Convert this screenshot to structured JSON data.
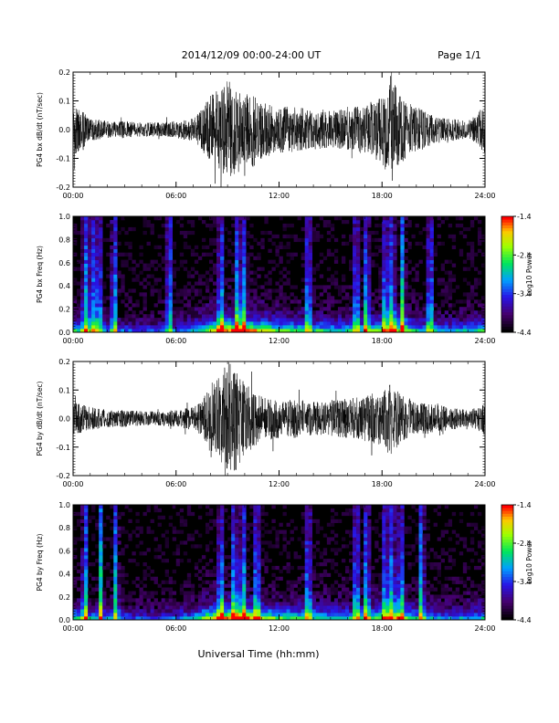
{
  "header": {
    "title": "2014/12/09  00:00-24:00 UT",
    "page": "Page 1/1"
  },
  "footer": {
    "xlabel": "Universal Time (hh:mm)"
  },
  "colorbar": {
    "label": "Log10 Power",
    "ticks": [
      "-1.4",
      "-2.4",
      "-3.4",
      "-4.4"
    ]
  },
  "chart_data": [
    {
      "type": "line",
      "ylabel": "PG4 bx dB/dt (nT/sec)",
      "xlim": [
        0,
        24
      ],
      "ylim": [
        -0.2,
        0.2
      ],
      "xticks": [
        "00:00",
        "06:00",
        "12:00",
        "18:00",
        "24:00"
      ],
      "yticks": [
        "0.2",
        "0.1",
        "0.0",
        "-0.1",
        "-0.2"
      ],
      "series": [
        {
          "x": [
            0,
            0.5,
            1,
            2,
            3,
            4,
            5,
            6,
            7,
            7.5,
            8,
            8.5,
            9,
            9.5,
            10,
            10.5,
            11,
            12,
            13,
            14,
            15,
            16,
            17,
            17.5,
            18,
            18.5,
            19,
            20,
            21,
            22,
            23,
            23.5,
            24
          ],
          "amplitude": [
            0.09,
            0.07,
            0.04,
            0.03,
            0.03,
            0.025,
            0.025,
            0.03,
            0.04,
            0.07,
            0.12,
            0.14,
            0.17,
            0.16,
            0.12,
            0.13,
            0.1,
            0.08,
            0.08,
            0.07,
            0.07,
            0.07,
            0.09,
            0.1,
            0.11,
            0.2,
            0.12,
            0.08,
            0.05,
            0.04,
            0.03,
            0.05,
            0.09
          ]
        }
      ],
      "colors": {
        "trace": "#000000"
      }
    },
    {
      "type": "heatmap",
      "ylabel": "PG4 bx Freq (Hz)",
      "xlim": [
        0,
        24
      ],
      "ylim": [
        0.0,
        1.0
      ],
      "xticks": [
        "00:00",
        "06:00",
        "12:00",
        "18:00",
        "24:00"
      ],
      "yticks": [
        "1.0",
        "0.8",
        "0.6",
        "0.4",
        "0.2",
        "0.0"
      ],
      "clim": [
        -4.4,
        -1.4
      ],
      "spikes": [
        0.7,
        1.1,
        1.5,
        2.4,
        5.6,
        8.6,
        9.6,
        9.9,
        13.7,
        16.5,
        17.1,
        18.2,
        18.6,
        19.2,
        20.8
      ],
      "activity_hours": [
        0,
        2,
        4,
        6,
        7,
        8,
        9,
        10,
        11,
        12,
        14,
        16,
        17,
        18,
        19,
        20,
        22,
        24
      ],
      "activity_level": [
        0.6,
        0.4,
        0.3,
        0.35,
        0.45,
        0.7,
        0.85,
        0.9,
        0.75,
        0.6,
        0.55,
        0.5,
        0.55,
        0.65,
        0.75,
        0.5,
        0.4,
        0.55
      ]
    },
    {
      "type": "line",
      "ylabel": "PG4 by dB/dt (nT/sec)",
      "xlim": [
        0,
        24
      ],
      "ylim": [
        -0.2,
        0.2
      ],
      "xticks": [
        "00:00",
        "06:00",
        "12:00",
        "18:00",
        "24:00"
      ],
      "yticks": [
        "0.2",
        "0.1",
        "0.0",
        "-0.1",
        "-0.2"
      ],
      "series": [
        {
          "x": [
            0,
            0.5,
            1,
            2,
            3,
            4,
            5,
            6,
            7,
            7.5,
            8,
            8.5,
            9,
            9.5,
            10,
            10.5,
            11,
            12,
            13,
            14,
            15,
            16,
            17,
            17.5,
            18,
            18.5,
            19,
            20,
            21,
            22,
            23,
            23.5,
            24
          ],
          "amplitude": [
            0.06,
            0.05,
            0.04,
            0.03,
            0.03,
            0.025,
            0.025,
            0.03,
            0.04,
            0.06,
            0.12,
            0.15,
            0.2,
            0.18,
            0.13,
            0.1,
            0.08,
            0.07,
            0.07,
            0.06,
            0.06,
            0.07,
            0.08,
            0.09,
            0.1,
            0.13,
            0.09,
            0.06,
            0.05,
            0.04,
            0.03,
            0.04,
            0.06
          ]
        }
      ],
      "colors": {
        "trace": "#000000"
      }
    },
    {
      "type": "heatmap",
      "ylabel": "PG4 by Freq (Hz)",
      "xlim": [
        0,
        24
      ],
      "ylim": [
        0.0,
        1.0
      ],
      "xticks": [
        "00:00",
        "06:00",
        "12:00",
        "18:00",
        "24:00"
      ],
      "yticks": [
        "1.0",
        "0.8",
        "0.6",
        "0.4",
        "0.2",
        "0.0"
      ],
      "clim": [
        -4.4,
        -1.4
      ],
      "spikes": [
        0.7,
        1.6,
        2.5,
        8.6,
        9.4,
        9.9,
        10.7,
        13.7,
        16.5,
        17.1,
        18.2,
        18.6,
        19.1,
        20.3
      ],
      "activity_hours": [
        0,
        2,
        4,
        6,
        7,
        8,
        9,
        10,
        11,
        12,
        14,
        16,
        17,
        18,
        19,
        20,
        22,
        24
      ],
      "activity_level": [
        0.55,
        0.4,
        0.3,
        0.35,
        0.45,
        0.75,
        0.85,
        0.9,
        0.7,
        0.6,
        0.55,
        0.5,
        0.55,
        0.65,
        0.7,
        0.5,
        0.4,
        0.5
      ]
    }
  ]
}
